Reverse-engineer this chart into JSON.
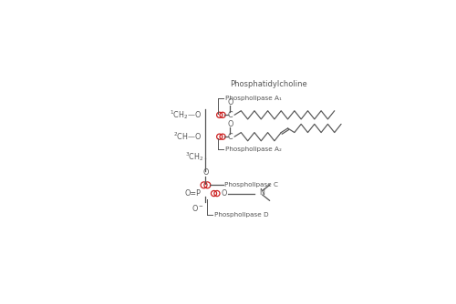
{
  "title": "Phosphatidylcholine",
  "background_color": "#ffffff",
  "line_color": "#555555",
  "red_color": "#cc2222",
  "figsize": [
    5.0,
    3.34
  ],
  "dpi": 100,
  "lw_main": 0.9,
  "lw_label": 0.7,
  "fs_title": 6.0,
  "fs_label": 5.2,
  "fs_chem": 5.8,
  "PLA1": "Phospholipase A₁",
  "PLA2": "Phospholipase A₂",
  "PLC": "Phospholipase C",
  "PLD": "Phospholipase D"
}
